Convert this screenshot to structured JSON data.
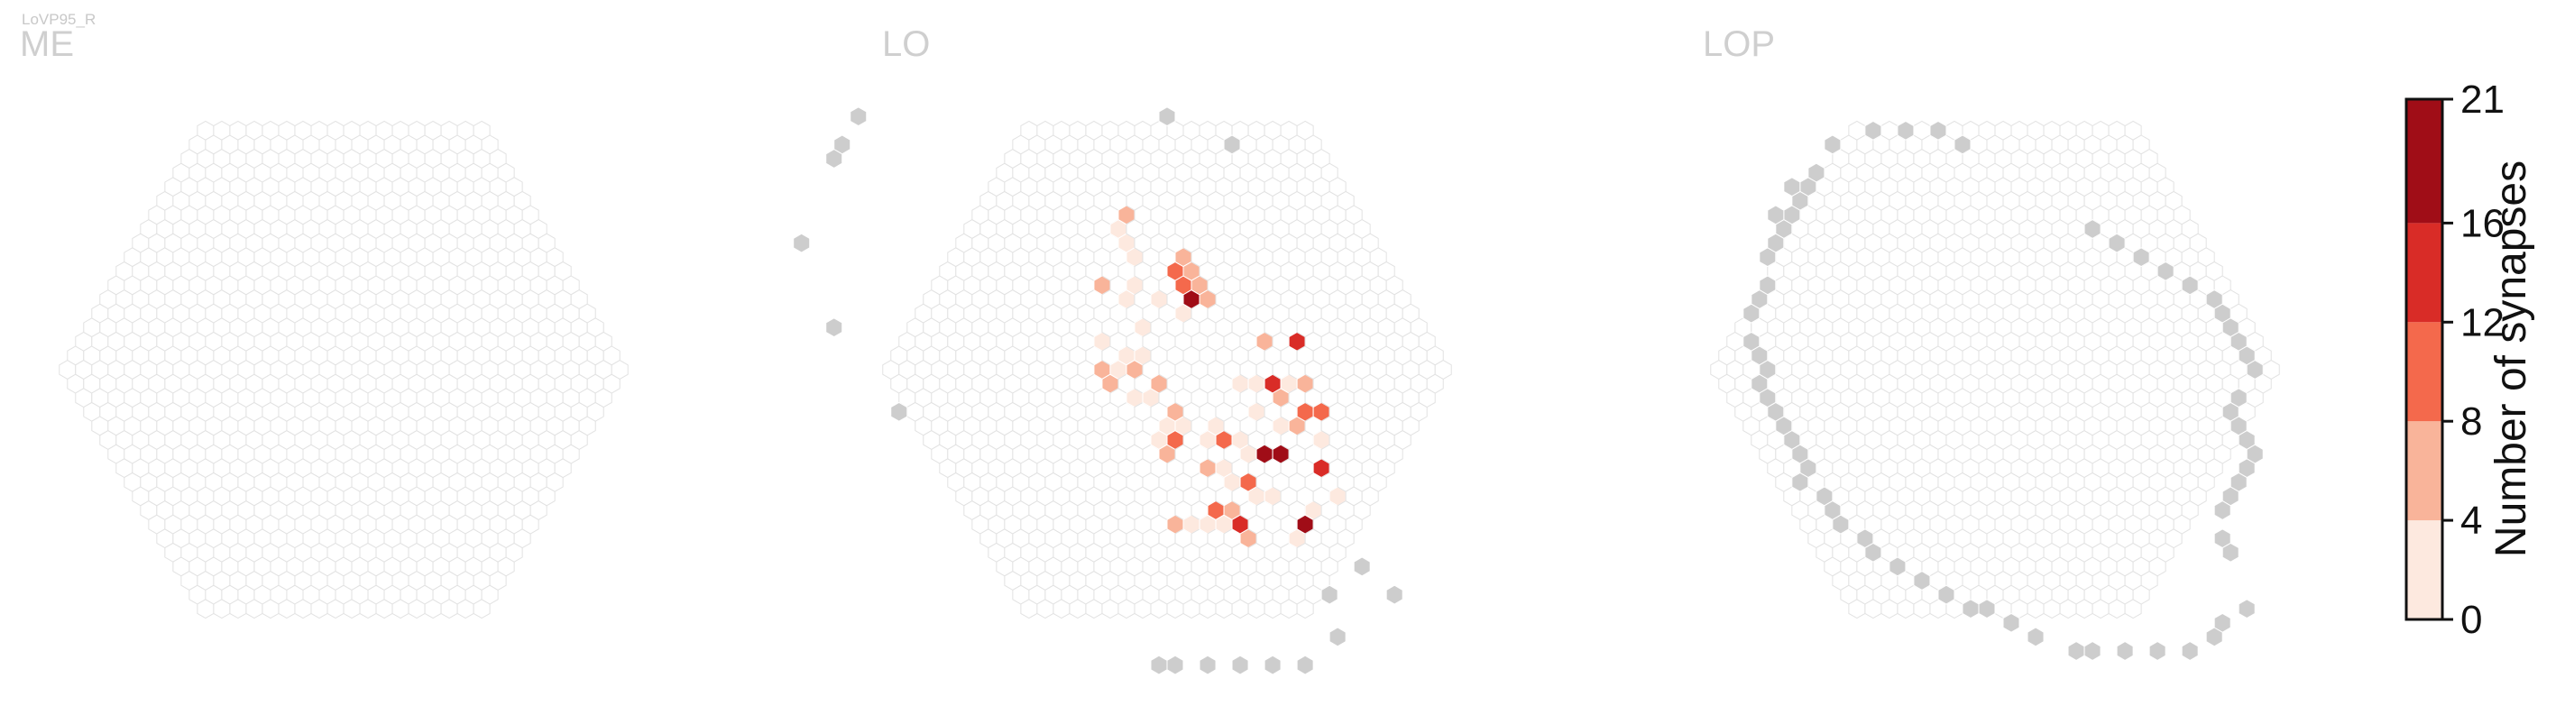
{
  "cell_type_label": "LoVP95_R",
  "colors": {
    "empty_fill": "#ffffff",
    "empty_stroke": "#e2e2e2",
    "outside_fill": "#cdcdcd",
    "bins": [
      "#fde9df",
      "#f9b49a",
      "#f4694c",
      "#d92c27",
      "#a00d17"
    ]
  },
  "chart_data": {
    "type": "heatmap",
    "panels": [
      {
        "title": "ME",
        "shape": "disc",
        "cells_with_synapses": [],
        "outside_hexes": []
      },
      {
        "title": "LO",
        "shape": "disc",
        "outside_hexes": [
          [
            -10,
            -18
          ],
          [
            -12,
            -16
          ],
          [
            -13,
            -15
          ],
          [
            -18,
            -9
          ],
          [
            -19,
            -3
          ],
          [
            -18,
            3
          ],
          [
            2,
            16
          ],
          [
            5,
            14
          ],
          [
            6,
            16
          ],
          [
            1,
            19
          ],
          [
            -2,
            21
          ],
          [
            -4,
            21
          ],
          [
            -6,
            21
          ],
          [
            -8,
            21
          ],
          [
            -10,
            21
          ],
          [
            -11,
            21
          ],
          [
            9,
            -18
          ],
          [
            12,
            -16
          ]
        ],
        "cells_with_synapses": [
          {
            "q": 3,
            "r": -11,
            "v": 6
          },
          {
            "q": 2,
            "r": -10,
            "v": 2
          },
          {
            "q": 2,
            "r": -9,
            "v": 2
          },
          {
            "q": 2,
            "r": -8,
            "v": 1
          },
          {
            "q": 5,
            "r": -8,
            "v": 8
          },
          {
            "q": 4,
            "r": -7,
            "v": 12
          },
          {
            "q": 5,
            "r": -7,
            "v": 5
          },
          {
            "q": 4,
            "r": -6,
            "v": 9
          },
          {
            "q": 5,
            "r": -6,
            "v": 6
          },
          {
            "q": 4,
            "r": -5,
            "v": 20
          },
          {
            "q": 5,
            "r": -5,
            "v": 7
          },
          {
            "q": 1,
            "r": -6,
            "v": 2
          },
          {
            "q": 0,
            "r": -5,
            "v": 3
          },
          {
            "q": 2,
            "r": -5,
            "v": 3
          },
          {
            "q": -1,
            "r": -6,
            "v": 7
          },
          {
            "q": 3,
            "r": -4,
            "v": 2
          },
          {
            "q": 0,
            "r": -3,
            "v": 3
          },
          {
            "q": -3,
            "r": -2,
            "v": 2
          },
          {
            "q": -1,
            "r": -1,
            "v": 3
          },
          {
            "q": -2,
            "r": -1,
            "v": 2
          },
          {
            "q": -4,
            "r": 0,
            "v": 7
          },
          {
            "q": -3,
            "r": 0,
            "v": 4
          },
          {
            "q": -2,
            "r": 0,
            "v": 7
          },
          {
            "q": -4,
            "r": 1,
            "v": 6
          },
          {
            "q": -1,
            "r": 1,
            "v": 6
          },
          {
            "q": -3,
            "r": 2,
            "v": 1
          },
          {
            "q": -2,
            "r": 2,
            "v": 2
          },
          {
            "q": 7,
            "r": -2,
            "v": 7
          },
          {
            "q": 9,
            "r": -2,
            "v": 16
          },
          {
            "q": 4,
            "r": 1,
            "v": 2
          },
          {
            "q": 5,
            "r": 1,
            "v": 1
          },
          {
            "q": 6,
            "r": 1,
            "v": 14
          },
          {
            "q": 7,
            "r": 1,
            "v": 3
          },
          {
            "q": 8,
            "r": 1,
            "v": 5
          },
          {
            "q": 6,
            "r": 2,
            "v": 7
          },
          {
            "q": 4,
            "r": 3,
            "v": 2
          },
          {
            "q": 7,
            "r": 3,
            "v": 10
          },
          {
            "q": 8,
            "r": 3,
            "v": 12
          },
          {
            "q": 5,
            "r": 4,
            "v": 2
          },
          {
            "q": 6,
            "r": 4,
            "v": 5
          },
          {
            "q": 7,
            "r": 5,
            "v": 4
          },
          {
            "q": -2,
            "r": 4,
            "v": 3
          },
          {
            "q": -1,
            "r": 3,
            "v": 8
          },
          {
            "q": -2,
            "r": 5,
            "v": 9
          },
          {
            "q": -3,
            "r": 5,
            "v": 2
          },
          {
            "q": -3,
            "r": 6,
            "v": 7
          },
          {
            "q": -1,
            "r": 4,
            "v": 2
          },
          {
            "q": 0,
            "r": 5,
            "v": 4
          },
          {
            "q": 1,
            "r": 4,
            "v": 2
          },
          {
            "q": 1,
            "r": 5,
            "v": 10
          },
          {
            "q": 2,
            "r": 5,
            "v": 3
          },
          {
            "q": 2,
            "r": 6,
            "v": 2
          },
          {
            "q": 0,
            "r": 7,
            "v": 3
          },
          {
            "q": 3,
            "r": 6,
            "v": 20
          },
          {
            "q": 4,
            "r": 6,
            "v": 19
          },
          {
            "q": -1,
            "r": 7,
            "v": 8
          },
          {
            "q": 0,
            "r": 8,
            "v": 2
          },
          {
            "q": 1,
            "r": 8,
            "v": 10
          },
          {
            "q": 6,
            "r": 7,
            "v": 14
          },
          {
            "q": 2,
            "r": 9,
            "v": 4
          },
          {
            "q": 1,
            "r": 9,
            "v": 1
          },
          {
            "q": -1,
            "r": 10,
            "v": 8
          },
          {
            "q": -2,
            "r": 10,
            "v": 9
          },
          {
            "q": -1,
            "r": 11,
            "v": 14
          },
          {
            "q": -2,
            "r": 11,
            "v": 2
          },
          {
            "q": -1,
            "r": 12,
            "v": 8
          },
          {
            "q": -3,
            "r": 11,
            "v": 2
          },
          {
            "q": 3,
            "r": 11,
            "v": 19
          },
          {
            "q": 2,
            "r": 12,
            "v": 4
          },
          {
            "q": 4,
            "r": 10,
            "v": 2
          },
          {
            "q": 6,
            "r": 9,
            "v": 3
          },
          {
            "q": -5,
            "r": 11,
            "v": 7
          },
          {
            "q": -4,
            "r": 11,
            "v": 3
          }
        ]
      },
      {
        "title": "LOP",
        "shape": "disc",
        "cells_with_synapses": [],
        "outside_hexes": [
          [
            -2,
            -16
          ],
          [
            1,
            -17
          ],
          [
            3,
            -17
          ],
          [
            5,
            -17
          ],
          [
            6,
            -16
          ],
          [
            -4,
            -14
          ],
          [
            -5,
            -13
          ],
          [
            -6,
            -12
          ],
          [
            -6,
            -13
          ],
          [
            -7,
            -11
          ],
          [
            -8,
            -10
          ],
          [
            -8,
            -11
          ],
          [
            -9,
            -9
          ],
          [
            -10,
            -8
          ],
          [
            -11,
            -6
          ],
          [
            -12,
            -5
          ],
          [
            -13,
            -4
          ],
          [
            -14,
            -2
          ],
          [
            -14,
            -1
          ],
          [
            -14,
            0
          ],
          [
            -15,
            1
          ],
          [
            -15,
            2
          ],
          [
            -15,
            3
          ],
          [
            -15,
            4
          ],
          [
            -15,
            5
          ],
          [
            -15,
            6
          ],
          [
            -15,
            7
          ],
          [
            -16,
            8
          ],
          [
            -15,
            9
          ],
          [
            -15,
            10
          ],
          [
            -15,
            11
          ],
          [
            -14,
            12
          ],
          [
            -14,
            13
          ],
          [
            -13,
            14
          ],
          [
            -12,
            15
          ],
          [
            -11,
            16
          ],
          [
            -10,
            17
          ],
          [
            -9,
            17
          ],
          [
            -8,
            18
          ],
          [
            -7,
            19
          ],
          [
            -5,
            20
          ],
          [
            -4,
            20
          ],
          [
            -2,
            20
          ],
          [
            0,
            20
          ],
          [
            2,
            20
          ],
          [
            4,
            19
          ],
          [
            5,
            18
          ],
          [
            7,
            17
          ],
          [
            11,
            -10
          ],
          [
            12,
            -9
          ],
          [
            13,
            -8
          ],
          [
            14,
            -7
          ],
          [
            15,
            -6
          ],
          [
            16,
            -5
          ],
          [
            16,
            -4
          ],
          [
            16,
            -3
          ],
          [
            16,
            -2
          ],
          [
            16,
            -1
          ],
          [
            16,
            0
          ],
          [
            14,
            2
          ],
          [
            13,
            3
          ],
          [
            13,
            4
          ],
          [
            13,
            5
          ],
          [
            13,
            6
          ],
          [
            12,
            7
          ],
          [
            11,
            8
          ],
          [
            10,
            9
          ],
          [
            9,
            10
          ],
          [
            8,
            12
          ],
          [
            8,
            13
          ]
        ]
      }
    ],
    "colorbar": {
      "label": "Number of synapses",
      "ticks": [
        0,
        4,
        8,
        12,
        16,
        21
      ],
      "bins": [
        [
          0,
          4
        ],
        [
          4,
          8
        ],
        [
          8,
          12
        ],
        [
          12,
          16
        ],
        [
          16,
          21
        ]
      ],
      "range": [
        0,
        21
      ]
    }
  }
}
